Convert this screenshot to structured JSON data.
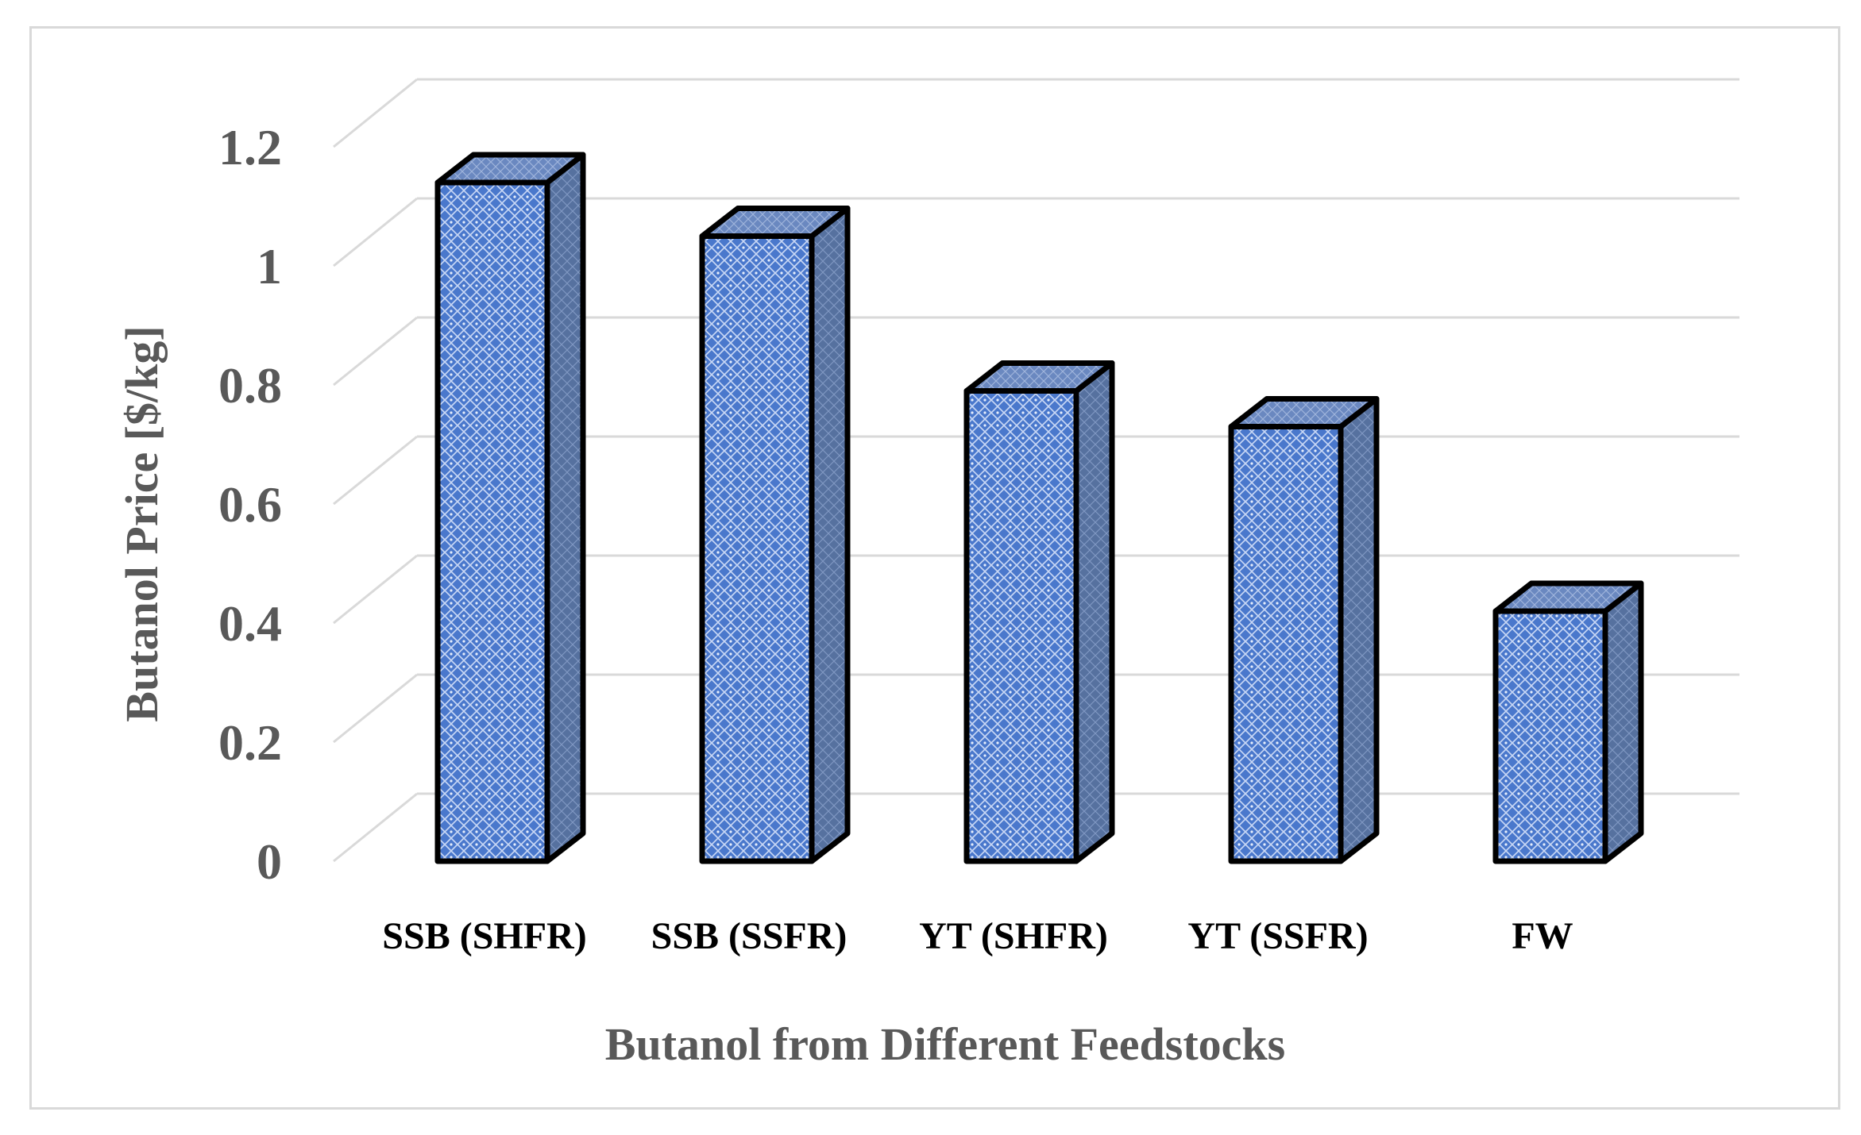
{
  "chart_data": {
    "type": "bar",
    "title": "",
    "categories": [
      "SSB (SHFR)",
      "SSB (SSFR)",
      "YT (SHFR)",
      "YT (SSFR)",
      "FW"
    ],
    "values": [
      1.14,
      1.05,
      0.79,
      0.73,
      0.42
    ],
    "xlabel": "Butanol from Different Feedstocks",
    "ylabel": "Butanol Price [$/kg]",
    "ylim": [
      0,
      1.2
    ],
    "yticks": [
      "0",
      "0.2",
      "0.4",
      "0.6",
      "0.8",
      "1",
      "1.2"
    ],
    "grid": true,
    "legend": "none",
    "colors": {
      "front": "#4a78cc",
      "side": "#5873a8",
      "top": "#6a88c0",
      "outline": "#000000",
      "grid": "#d9d9d9",
      "text": "#595959"
    }
  }
}
